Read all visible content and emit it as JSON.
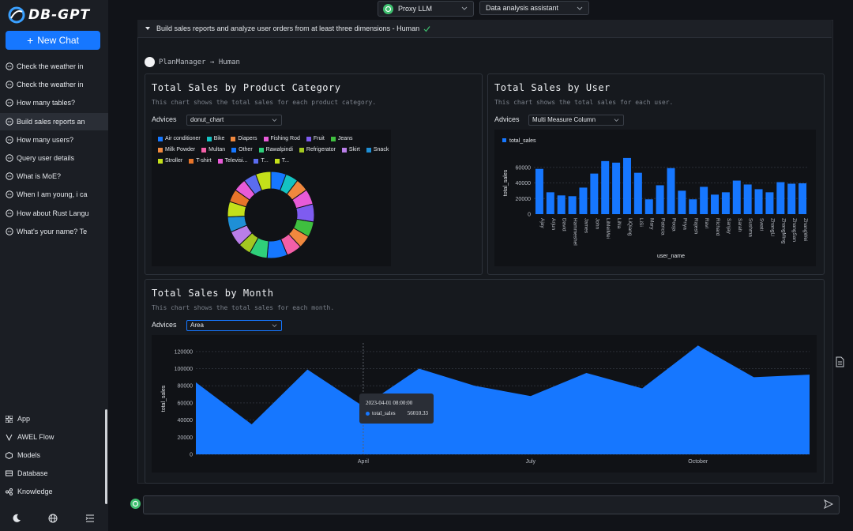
{
  "sidebar": {
    "logo": "DB-GPT",
    "new_chat": "New Chat",
    "conversations": [
      "Check the weather in",
      "Check the weather in",
      "How many tables?",
      "Build sales reports an",
      "How many users?",
      "Query user details",
      "What is MoE?",
      "When I am young, i ca",
      "How about Rust Langu",
      "What's your name? Te"
    ],
    "active_index": 3,
    "nav": [
      "App",
      "AWEL Flow",
      "Models",
      "Database",
      "Knowledge"
    ]
  },
  "top": {
    "model": "Proxy LLM",
    "scene": "Data analysis assistant"
  },
  "conversation": {
    "question": "Build sales reports and analyze user orders from at least three dimensions - Human",
    "agent_flow": "PlanManager → Human"
  },
  "cards": {
    "category": {
      "title": "Total Sales by Product Category",
      "desc": "This chart shows the total sales for each product category.",
      "advices_label": "Advices",
      "advice": "donut_chart"
    },
    "user": {
      "title": "Total Sales by User",
      "desc": "This chart shows the total sales for each user.",
      "advices_label": "Advices",
      "advice": "Multi Measure Column"
    },
    "month": {
      "title": "Total Sales by Month",
      "desc": "This chart shows the total sales for each month.",
      "advices_label": "Advices",
      "advice": "Area"
    }
  },
  "tooltip": {
    "date": "2023-04-01 08:00:00",
    "series": "total_sales",
    "value": "56010.33"
  },
  "colors": {
    "accent": "#1677ff",
    "bar": "#1677ff",
    "area": "#1677ff"
  },
  "chart_data": [
    {
      "type": "pie",
      "variant": "donut",
      "categories": [
        "Air conditioner",
        "Bike",
        "Diapers",
        "Fishing Rod",
        "Fruit",
        "Jeans",
        "Milk Powder",
        "Multan",
        "Other",
        "Rawalpindi",
        "Refrigerator",
        "Skirt",
        "Snack",
        "Stroller",
        "T-shirt",
        "Televisi...",
        "T...",
        "T..."
      ],
      "colors": [
        "#1677ff",
        "#14c2c2",
        "#f0883e",
        "#e85bd8",
        "#7e5cf0",
        "#3fbf3f",
        "#f0883e",
        "#f35fa7",
        "#1677ff",
        "#2fcf7a",
        "#a3c721",
        "#b97ee8",
        "#1f8fd6",
        "#c4e01a",
        "#e8752a",
        "#e85bd8",
        "#5b6cf0",
        "#c4e01a"
      ],
      "values": [
        6,
        5,
        5,
        6,
        7,
        6,
        5,
        6,
        8,
        7,
        5,
        6,
        6,
        6,
        5,
        5,
        5,
        6
      ]
    },
    {
      "type": "bar",
      "title": "Total Sales by User",
      "xlabel": "user_name",
      "ylabel": "total_sales",
      "series_name": "total_sales",
      "ylim": [
        0,
        80000
      ],
      "yticks": [
        0,
        20000,
        40000,
        60000
      ],
      "categories": [
        "Ajay",
        "Arjun",
        "David",
        "Hammeshel",
        "James",
        "John",
        "LiMeiMei",
        "LiNa",
        "LiQiang",
        "LiSi",
        "Mary",
        "Patricia",
        "Pooja",
        "Priya",
        "Rajesh",
        "Ravi",
        "Richard",
        "Sanjay",
        "Sarah",
        "Sushma",
        "Swati",
        "ZhangLi",
        "ZhangMing",
        "ZhangSan",
        "ZhangWei"
      ],
      "values": [
        58000,
        28000,
        24000,
        23000,
        34000,
        52000,
        68000,
        66000,
        72000,
        53000,
        19000,
        37000,
        59000,
        30000,
        19000,
        35000,
        25000,
        28000,
        43000,
        38000,
        32000,
        28000,
        41000,
        39000,
        39500
      ]
    },
    {
      "type": "area",
      "title": "Total Sales by Month",
      "ylabel": "total_sales",
      "series_name": "total_sales",
      "ylim": [
        0,
        130000
      ],
      "yticks": [
        0,
        20000,
        40000,
        60000,
        80000,
        100000,
        120000
      ],
      "x": [
        "2023-01",
        "2023-02",
        "2023-03",
        "2023-04",
        "2023-05",
        "2023-06",
        "2023-07",
        "2023-08",
        "2023-09",
        "2023-10",
        "2023-11",
        "2023-12"
      ],
      "xtick_labels": [
        "April",
        "July",
        "October"
      ],
      "values": [
        84000,
        35000,
        99000,
        56010.33,
        100000,
        80000,
        68000,
        95000,
        77000,
        127000,
        90000,
        93000
      ]
    }
  ]
}
